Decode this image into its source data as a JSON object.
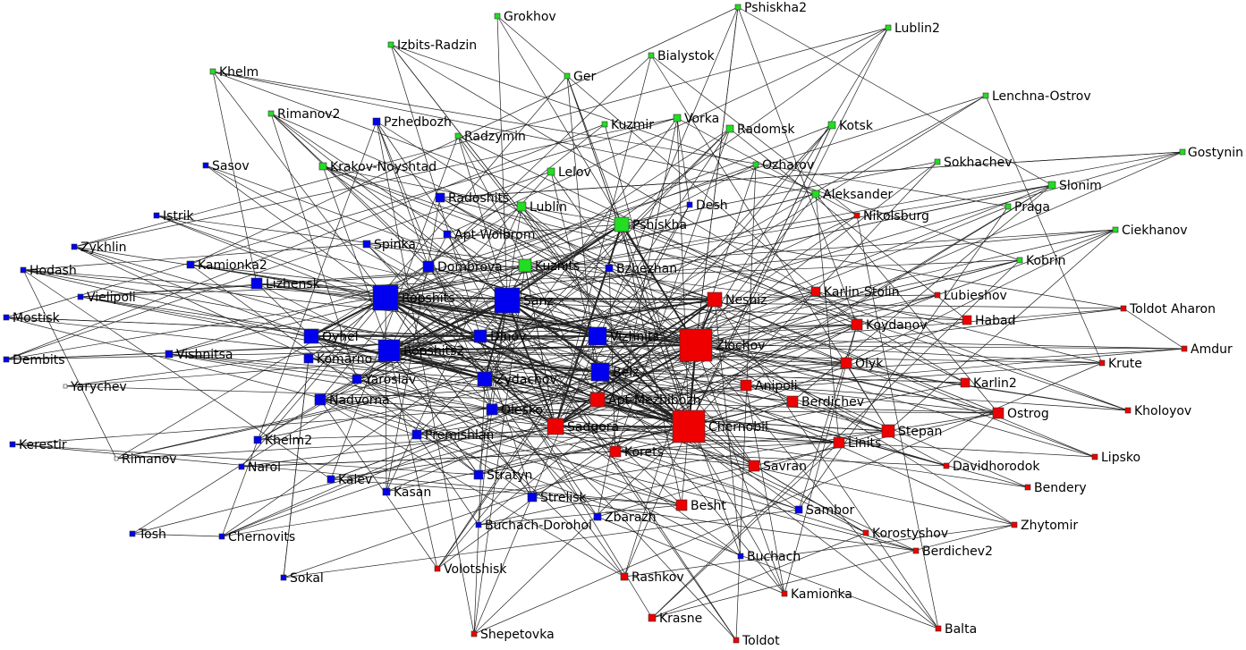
{
  "nodes": [
    {
      "label": "Grokhov",
      "color": "#22dd22"
    },
    {
      "label": "Pshiskha2",
      "color": "#22dd22"
    },
    {
      "label": "Lublin2",
      "color": "#22dd22"
    },
    {
      "label": "Izbits-Radzin",
      "color": "#22dd22"
    },
    {
      "label": "Bialystok",
      "color": "#22dd22"
    },
    {
      "label": "Khelm",
      "color": "#22dd22"
    },
    {
      "label": "Ger",
      "color": "#22dd22"
    },
    {
      "label": "Lenchna-Ostrov",
      "color": "#22dd22"
    },
    {
      "label": "Rimanov2",
      "color": "#22dd22"
    },
    {
      "label": "Kuzmir",
      "color": "#22dd22"
    },
    {
      "label": "Vorka",
      "color": "#22dd22"
    },
    {
      "label": "Radomsk",
      "color": "#22dd22"
    },
    {
      "label": "Kotsk",
      "color": "#22dd22"
    },
    {
      "label": "Radzymin",
      "color": "#22dd22"
    },
    {
      "label": "Sokhachev",
      "color": "#22dd22"
    },
    {
      "label": "Krakov-Noyshtad",
      "color": "#22dd22"
    },
    {
      "label": "Ozharov",
      "color": "#22dd22"
    },
    {
      "label": "Lelov",
      "color": "#22dd22"
    },
    {
      "label": "Aleksander",
      "color": "#22dd22"
    },
    {
      "label": "Slonim",
      "color": "#22dd22"
    },
    {
      "label": "Gostynin",
      "color": "#22dd22"
    },
    {
      "label": "Lublin",
      "color": "#22dd22"
    },
    {
      "label": "Praga",
      "color": "#22dd22"
    },
    {
      "label": "Pshiskha",
      "color": "#22dd22"
    },
    {
      "label": "Ciekhanov",
      "color": "#22dd22"
    },
    {
      "label": "Kobrin",
      "color": "#22dd22"
    },
    {
      "label": "Kuznits",
      "color": "#22dd22"
    },
    {
      "label": "Pzhedbozh",
      "color": "#0000ee"
    },
    {
      "label": "Sasov",
      "color": "#0000ee"
    },
    {
      "label": "Radoshits",
      "color": "#0000ee"
    },
    {
      "label": "Desh",
      "color": "#0000ee"
    },
    {
      "label": "Istrik",
      "color": "#0000ee"
    },
    {
      "label": "Apt-Wolbrom",
      "color": "#0000ee"
    },
    {
      "label": "Zykhlin",
      "color": "#0000ee"
    },
    {
      "label": "Spinka",
      "color": "#0000ee"
    },
    {
      "label": "Kamionka2",
      "color": "#0000ee"
    },
    {
      "label": "Dombrova",
      "color": "#0000ee"
    },
    {
      "label": "Bzhezhan",
      "color": "#0000ee"
    },
    {
      "label": "Hodash",
      "color": "#0000ee"
    },
    {
      "label": "Lizhensk",
      "color": "#0000ee"
    },
    {
      "label": "Ropshits",
      "color": "#0000ee"
    },
    {
      "label": "Sanz",
      "color": "#0000ee"
    },
    {
      "label": "Vielipoli",
      "color": "#0000ee"
    },
    {
      "label": "Mostisk",
      "color": "#0000ee"
    },
    {
      "label": "Oyhel",
      "color": "#0000ee"
    },
    {
      "label": "Dinov",
      "color": "#0000ee"
    },
    {
      "label": "Vizhnits",
      "color": "#0000ee"
    },
    {
      "label": "Ropshits2",
      "color": "#0000ee"
    },
    {
      "label": "Vishnitsa",
      "color": "#0000ee"
    },
    {
      "label": "Dembits",
      "color": "#0000ee"
    },
    {
      "label": "Komarno",
      "color": "#0000ee"
    },
    {
      "label": "Belz",
      "color": "#0000ee"
    },
    {
      "label": "Zydachov",
      "color": "#0000ee"
    },
    {
      "label": "Yaroslav",
      "color": "#0000ee"
    },
    {
      "label": "Nadvorna",
      "color": "#0000ee"
    },
    {
      "label": "Olesko",
      "color": "#0000ee"
    },
    {
      "label": "Yarychev",
      "color": "#ffffff"
    },
    {
      "label": "Premishlan",
      "color": "#0000ee"
    },
    {
      "label": "Khelm2",
      "color": "#0000ee"
    },
    {
      "label": "Kerestir",
      "color": "#0000ee"
    },
    {
      "label": "Rimanov",
      "color": "#ffffff"
    },
    {
      "label": "Narol",
      "color": "#0000ee"
    },
    {
      "label": "Stratyn",
      "color": "#0000ee"
    },
    {
      "label": "Kalev",
      "color": "#0000ee"
    },
    {
      "label": "Kasan",
      "color": "#0000ee"
    },
    {
      "label": "Strelisk",
      "color": "#0000ee"
    },
    {
      "label": "Sambor",
      "color": "#0000ee"
    },
    {
      "label": "Zbarazh",
      "color": "#0000ee"
    },
    {
      "label": "Buchach-Dorohoi",
      "color": "#0000ee"
    },
    {
      "label": "Tosh",
      "color": "#0000ee"
    },
    {
      "label": "Chernovits",
      "color": "#0000ee"
    },
    {
      "label": "Buchach",
      "color": "#0000ee"
    },
    {
      "label": "Sokal",
      "color": "#0000ee"
    },
    {
      "label": "Nikolsburg",
      "color": "#ee0000"
    },
    {
      "label": "Neshiz",
      "color": "#ee0000"
    },
    {
      "label": "Karlin-Stolin",
      "color": "#ee0000"
    },
    {
      "label": "Lubieshov",
      "color": "#ee0000"
    },
    {
      "label": "Toldot Aharon",
      "color": "#ee0000"
    },
    {
      "label": "Habad",
      "color": "#ee0000"
    },
    {
      "label": "Koydanov",
      "color": "#ee0000"
    },
    {
      "label": "Zlochov",
      "color": "#ee0000"
    },
    {
      "label": "Amdur",
      "color": "#ee0000"
    },
    {
      "label": "Olyk",
      "color": "#ee0000"
    },
    {
      "label": "Krute",
      "color": "#ee0000"
    },
    {
      "label": "Karlin2",
      "color": "#ee0000"
    },
    {
      "label": "Anipoli",
      "color": "#ee0000"
    },
    {
      "label": "Apt-Mezhibozh",
      "color": "#ee0000"
    },
    {
      "label": "Berdichev",
      "color": "#ee0000"
    },
    {
      "label": "Ostrog",
      "color": "#ee0000"
    },
    {
      "label": "Kholoyov",
      "color": "#ee0000"
    },
    {
      "label": "Sadgora",
      "color": "#ee0000"
    },
    {
      "label": "Chernobil",
      "color": "#ee0000"
    },
    {
      "label": "Stepan",
      "color": "#ee0000"
    },
    {
      "label": "Linits",
      "color": "#ee0000"
    },
    {
      "label": "Korets",
      "color": "#ee0000"
    },
    {
      "label": "Lipsko",
      "color": "#ee0000"
    },
    {
      "label": "Davidhorodok",
      "color": "#ee0000"
    },
    {
      "label": "Savran",
      "color": "#ee0000"
    },
    {
      "label": "Bendery",
      "color": "#ee0000"
    },
    {
      "label": "Besht",
      "color": "#ee0000"
    },
    {
      "label": "Korostyshov",
      "color": "#ee0000"
    },
    {
      "label": "Zhytomir",
      "color": "#ee0000"
    },
    {
      "label": "Berdichev2",
      "color": "#ee0000"
    },
    {
      "label": "Volotshisk",
      "color": "#ee0000"
    },
    {
      "label": "Rashkov",
      "color": "#ee0000"
    },
    {
      "label": "Kamionka",
      "color": "#ee0000"
    },
    {
      "label": "Krasne",
      "color": "#ee0000"
    },
    {
      "label": "Balta",
      "color": "#ee0000"
    },
    {
      "label": "Shepetovka",
      "color": "#ee0000"
    },
    {
      "label": "Toldot",
      "color": "#ee0000"
    }
  ]
}
